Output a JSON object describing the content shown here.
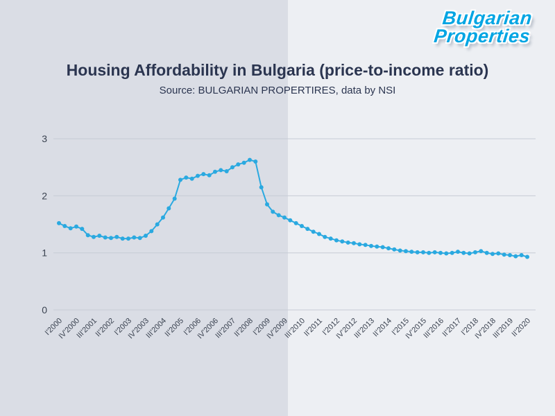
{
  "logo": {
    "line1": "Bulgarian",
    "line2": "Properties"
  },
  "colors": {
    "line": "#2aa9e0",
    "logo_blue": "#00a5e3",
    "bg_left": "#dadde5",
    "bg_right": "#edeff3",
    "title_text": "#2b3550",
    "gridline": "#c6cbd5"
  },
  "chart_data": {
    "type": "line",
    "title": "Housing Affordability in Bulgaria (price-to-income ratio)",
    "subtitle": "Source: BULGARIAN PROPERTIRES, data by NSI",
    "series_name": "price-to-income ratio",
    "n_points": 82,
    "tick_step": 3,
    "x_tick_labels": [
      "I'2000",
      "IV'2000",
      "III'2001",
      "II'2002",
      "I'2003",
      "IV'2003",
      "III'2004",
      "II'2005",
      "I'2006",
      "IV'2006",
      "III'2007",
      "II'2008",
      "I'2009",
      "IV'2009",
      "III'2010",
      "II'2011",
      "I'2012",
      "IV'2012",
      "III'2013",
      "II'2014",
      "I'2015",
      "IV'2015",
      "III'2016",
      "II'2017",
      "I'2018",
      "IV'2018",
      "III'2019",
      "II'2020"
    ],
    "values": [
      1.52,
      1.47,
      1.43,
      1.46,
      1.42,
      1.31,
      1.28,
      1.3,
      1.27,
      1.26,
      1.28,
      1.25,
      1.25,
      1.27,
      1.26,
      1.3,
      1.38,
      1.5,
      1.62,
      1.78,
      1.95,
      2.28,
      2.32,
      2.3,
      2.35,
      2.38,
      2.36,
      2.42,
      2.45,
      2.43,
      2.5,
      2.55,
      2.58,
      2.63,
      2.6,
      2.15,
      1.85,
      1.72,
      1.66,
      1.62,
      1.57,
      1.52,
      1.47,
      1.42,
      1.37,
      1.33,
      1.28,
      1.25,
      1.22,
      1.2,
      1.18,
      1.17,
      1.15,
      1.14,
      1.12,
      1.11,
      1.1,
      1.08,
      1.06,
      1.04,
      1.03,
      1.02,
      1.01,
      1.01,
      1.0,
      1.01,
      1.0,
      0.99,
      1.0,
      1.02,
      1.0,
      0.99,
      1.01,
      1.03,
      1.0,
      0.98,
      0.99,
      0.97,
      0.96,
      0.94,
      0.96,
      0.93
    ],
    "y_ticks": [
      0,
      1,
      2,
      3
    ],
    "ylim": [
      0,
      3.3
    ],
    "grid": "horizontal",
    "legend": "none",
    "marker": "circle"
  }
}
